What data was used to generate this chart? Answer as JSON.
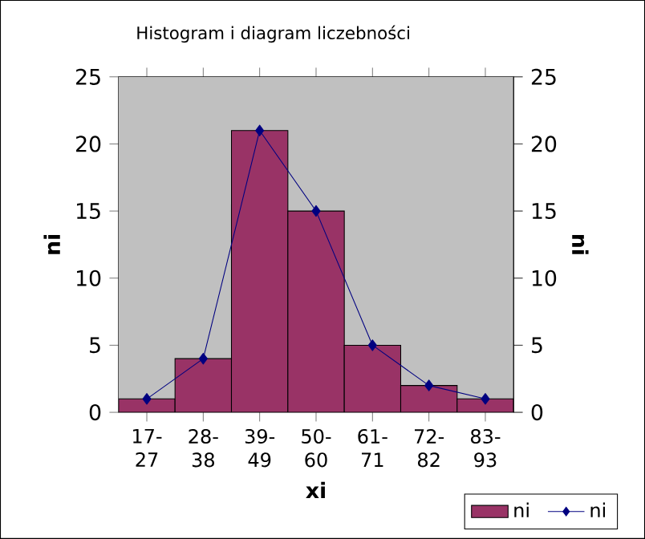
{
  "chart_data": {
    "type": "bar",
    "title": "Histogram i diagram liczebności",
    "xlabel": "xi",
    "ylabel": "ni",
    "y2label": "ni",
    "categories": [
      "17-27",
      "28-38",
      "39-49",
      "50-60",
      "61-71",
      "72-82",
      "83-93"
    ],
    "series": [
      {
        "name": "ni",
        "color": "#993366",
        "values": [
          1,
          4,
          21,
          15,
          5,
          2,
          1
        ]
      },
      {
        "name": "ni",
        "type": "line",
        "axis": "y2",
        "color": "#000080",
        "marker": "diamond",
        "values": [
          1,
          4,
          21,
          15,
          5,
          2,
          1
        ]
      }
    ],
    "ylim": [
      0,
      25
    ],
    "yticks": [
      0,
      5,
      10,
      15,
      20,
      25
    ],
    "y2lim": [
      0,
      25
    ],
    "y2ticks": [
      0,
      5,
      10,
      15,
      20,
      25
    ],
    "legend": "bottom right",
    "grid": false
  }
}
